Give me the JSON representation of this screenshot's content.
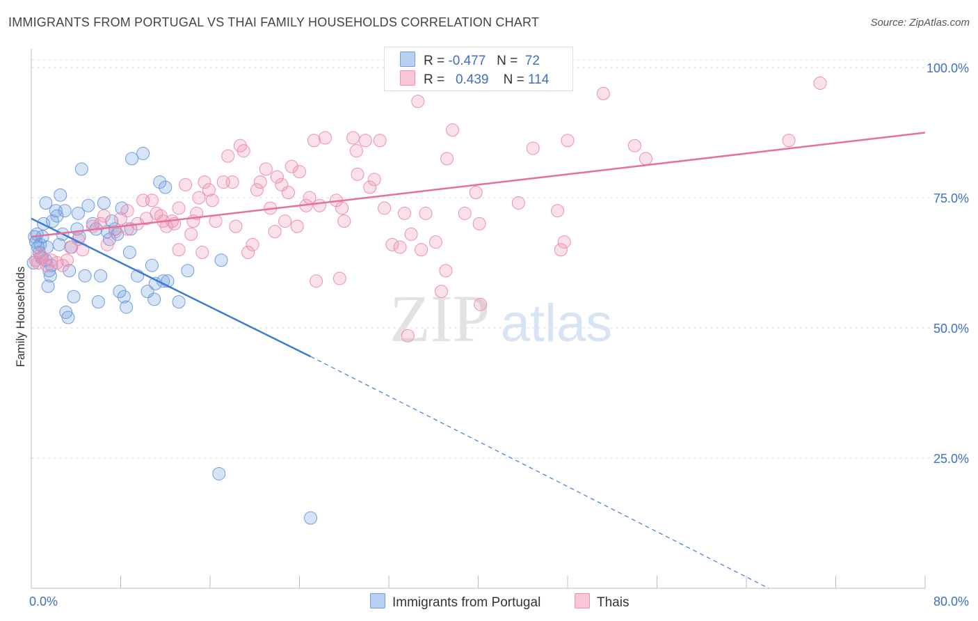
{
  "title": "IMMIGRANTS FROM PORTUGAL VS THAI FAMILY HOUSEHOLDS CORRELATION CHART",
  "source": "Source: ZipAtlas.com",
  "watermark": {
    "zip": "ZIP",
    "atlas": "atlas"
  },
  "legend": {
    "r_label": "R =",
    "n_label": "N =",
    "rows": [
      {
        "r": "-0.477",
        "n": "72",
        "color": "#6f9de0"
      },
      {
        "r": "0.439",
        "n": "114",
        "color": "#ee8fb0"
      }
    ]
  },
  "chart_data": {
    "type": "scatter",
    "title": "IMMIGRANTS FROM PORTUGAL VS THAI FAMILY HOUSEHOLDS CORRELATION CHART",
    "xlabel": "",
    "ylabel": "Family Households",
    "xlim": [
      0,
      80
    ],
    "ylim": [
      0,
      102
    ],
    "x_tick_labels": [
      "0.0%",
      "80.0%"
    ],
    "y_ticks": [
      25,
      50,
      75,
      100
    ],
    "y_tick_labels": [
      "25.0%",
      "50.0%",
      "75.0%",
      "100.0%"
    ],
    "grid": true,
    "legend_position": "top-center",
    "series": [
      {
        "name": "Immigrants from Portugal",
        "color": "#6f9de0",
        "points": [
          [
            0.2,
            62.5
          ],
          [
            0.3,
            67.5
          ],
          [
            0.4,
            66.5
          ],
          [
            0.5,
            68
          ],
          [
            0.6,
            65.5
          ],
          [
            0.7,
            64.5
          ],
          [
            0.8,
            66
          ],
          [
            0.9,
            63.5
          ],
          [
            1.0,
            67.5
          ],
          [
            1.1,
            70
          ],
          [
            1.3,
            74
          ],
          [
            1.3,
            63
          ],
          [
            1.4,
            65.5
          ],
          [
            1.5,
            58
          ],
          [
            1.6,
            61
          ],
          [
            1.7,
            60
          ],
          [
            1.8,
            62
          ],
          [
            1.9,
            70.5
          ],
          [
            2.2,
            72.5
          ],
          [
            2.3,
            71.5
          ],
          [
            2.5,
            66
          ],
          [
            2.6,
            75.5
          ],
          [
            2.8,
            68
          ],
          [
            3.0,
            72.5
          ],
          [
            3.1,
            53
          ],
          [
            3.3,
            52
          ],
          [
            3.4,
            61
          ],
          [
            3.6,
            65.5
          ],
          [
            3.8,
            56
          ],
          [
            4.1,
            69
          ],
          [
            4.2,
            72
          ],
          [
            4.3,
            67.5
          ],
          [
            4.5,
            80.5
          ],
          [
            4.8,
            60
          ],
          [
            5.1,
            73.5
          ],
          [
            5.5,
            70
          ],
          [
            5.8,
            69
          ],
          [
            6.0,
            55
          ],
          [
            6.2,
            60
          ],
          [
            6.5,
            74
          ],
          [
            6.8,
            68.5
          ],
          [
            7.0,
            67
          ],
          [
            7.2,
            70.5
          ],
          [
            7.5,
            69
          ],
          [
            7.7,
            68
          ],
          [
            7.9,
            57
          ],
          [
            8.1,
            73
          ],
          [
            8.3,
            56
          ],
          [
            8.5,
            54
          ],
          [
            8.8,
            64.5
          ],
          [
            8.9,
            69
          ],
          [
            9.0,
            82.5
          ],
          [
            9.5,
            60
          ],
          [
            10.0,
            83.5
          ],
          [
            10.4,
            57
          ],
          [
            10.8,
            62
          ],
          [
            11.0,
            55.5
          ],
          [
            11.1,
            58.5
          ],
          [
            11.5,
            78
          ],
          [
            11.8,
            59
          ],
          [
            12.0,
            77
          ],
          [
            12.2,
            59
          ],
          [
            13.2,
            55
          ],
          [
            14.0,
            61
          ],
          [
            17.0,
            63
          ],
          [
            16.8,
            22
          ],
          [
            25.0,
            13.5
          ]
        ]
      },
      {
        "name": "Thais",
        "color": "#ee8fb0",
        "points": [
          [
            0.4,
            63
          ],
          [
            0.6,
            62.5
          ],
          [
            0.8,
            64
          ],
          [
            1.0,
            63.5
          ],
          [
            1.4,
            62
          ],
          [
            1.8,
            63
          ],
          [
            2.3,
            62.5
          ],
          [
            2.8,
            62
          ],
          [
            3.2,
            63
          ],
          [
            3.5,
            65.5
          ],
          [
            4.2,
            67
          ],
          [
            4.6,
            65
          ],
          [
            5.5,
            69.5
          ],
          [
            6.2,
            70
          ],
          [
            6.5,
            71.5
          ],
          [
            6.8,
            66
          ],
          [
            7.5,
            68.5
          ],
          [
            8.0,
            71
          ],
          [
            8.6,
            72.5
          ],
          [
            8.6,
            69
          ],
          [
            9.5,
            70
          ],
          [
            10.0,
            74.5
          ],
          [
            10.3,
            71
          ],
          [
            10.8,
            74.5
          ],
          [
            11.2,
            72
          ],
          [
            11.6,
            71.5
          ],
          [
            11.8,
            70.5
          ],
          [
            12.1,
            69.5
          ],
          [
            12.6,
            70.5
          ],
          [
            12.8,
            70
          ],
          [
            13.2,
            73
          ],
          [
            13.2,
            65
          ],
          [
            13.8,
            77.5
          ],
          [
            14.3,
            68
          ],
          [
            14.5,
            70.5
          ],
          [
            14.8,
            72
          ],
          [
            15.0,
            75
          ],
          [
            15.3,
            64.5
          ],
          [
            15.5,
            78
          ],
          [
            15.9,
            76.5
          ],
          [
            16.2,
            74.5
          ],
          [
            16.5,
            70.5
          ],
          [
            17.2,
            78
          ],
          [
            17.6,
            83
          ],
          [
            18.0,
            78
          ],
          [
            18.3,
            69.5
          ],
          [
            18.7,
            85
          ],
          [
            19.0,
            84
          ],
          [
            19.4,
            64.5
          ],
          [
            19.8,
            66
          ],
          [
            20.2,
            76.5
          ],
          [
            20.5,
            78
          ],
          [
            21.0,
            80.5
          ],
          [
            21.4,
            73
          ],
          [
            21.8,
            68.5
          ],
          [
            22.0,
            79
          ],
          [
            22.4,
            77.5
          ],
          [
            22.7,
            70.5
          ],
          [
            23.0,
            76
          ],
          [
            23.3,
            81
          ],
          [
            23.8,
            69.5
          ],
          [
            24.0,
            80
          ],
          [
            24.6,
            73.5
          ],
          [
            24.9,
            75
          ],
          [
            25.3,
            86
          ],
          [
            25.5,
            59
          ],
          [
            25.8,
            73.5
          ],
          [
            26.3,
            86.5
          ],
          [
            27.3,
            74.5
          ],
          [
            27.6,
            59.5
          ],
          [
            27.8,
            73
          ],
          [
            28.0,
            70.5
          ],
          [
            28.8,
            86.5
          ],
          [
            29.1,
            84
          ],
          [
            29.2,
            79.5
          ],
          [
            29.9,
            86
          ],
          [
            30.3,
            77
          ],
          [
            30.7,
            78.5
          ],
          [
            31.2,
            86
          ],
          [
            31.6,
            73
          ],
          [
            32.3,
            66
          ],
          [
            33.0,
            65.5
          ],
          [
            33.4,
            72
          ],
          [
            33.7,
            48.5
          ],
          [
            34.0,
            68
          ],
          [
            34.6,
            93.5
          ],
          [
            34.9,
            65
          ],
          [
            35.3,
            72
          ],
          [
            36.2,
            66.5
          ],
          [
            36.7,
            57
          ],
          [
            37.1,
            61
          ],
          [
            37.2,
            82.5
          ],
          [
            37.7,
            88
          ],
          [
            38.8,
            72
          ],
          [
            39.8,
            76
          ],
          [
            40.1,
            70
          ],
          [
            40.2,
            54.5
          ],
          [
            43.6,
            74
          ],
          [
            44.9,
            84.5
          ],
          [
            47.1,
            72.5
          ],
          [
            47.4,
            65
          ],
          [
            47.7,
            66.5
          ],
          [
            48.0,
            86
          ],
          [
            51.2,
            95
          ],
          [
            54.0,
            85
          ],
          [
            55.0,
            82.5
          ],
          [
            67.8,
            86
          ],
          [
            70.6,
            97
          ]
        ]
      }
    ],
    "trendlines": [
      {
        "series": "Immigrants from Portugal",
        "solid": [
          [
            0,
            71
          ],
          [
            25,
            44.5
          ]
        ],
        "dashed": [
          [
            25,
            44.5
          ],
          [
            66,
            0
          ]
        ]
      },
      {
        "series": "Thais",
        "solid": [
          [
            0,
            67.5
          ],
          [
            80,
            87.5
          ]
        ]
      }
    ]
  }
}
